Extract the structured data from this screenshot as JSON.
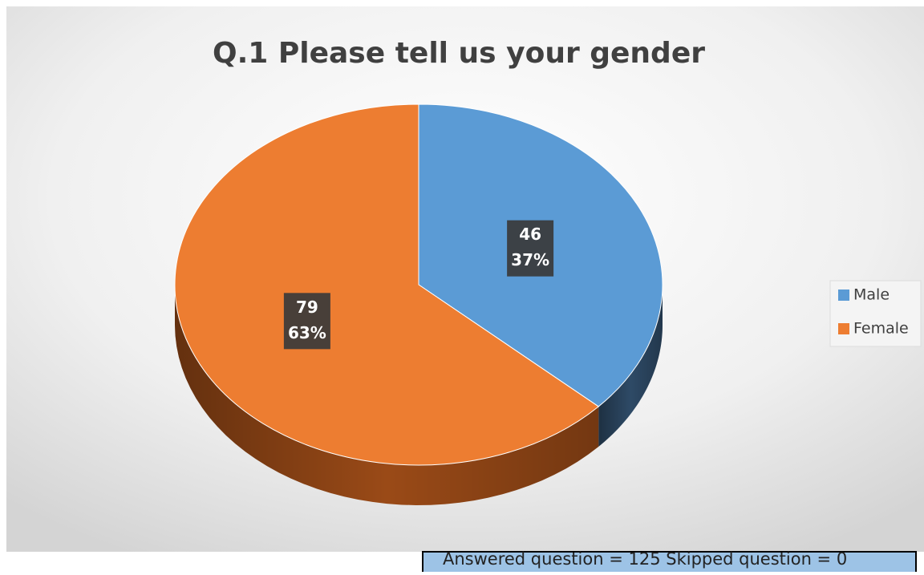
{
  "chart_data": {
    "type": "pie3d",
    "title": "Q.1  Please tell us your gender",
    "categories": [
      "Male",
      "Female"
    ],
    "values": [
      46,
      79
    ],
    "percentages": [
      37,
      63
    ],
    "percentage_labels": [
      "37%",
      "63%"
    ],
    "colors": [
      "#5b9bd5",
      "#ed7d31"
    ],
    "side_colors": [
      "#2e4a66",
      "#9a4a17"
    ],
    "legend": "right",
    "annotation": "Answered question = 125 Skipped question = 0"
  }
}
